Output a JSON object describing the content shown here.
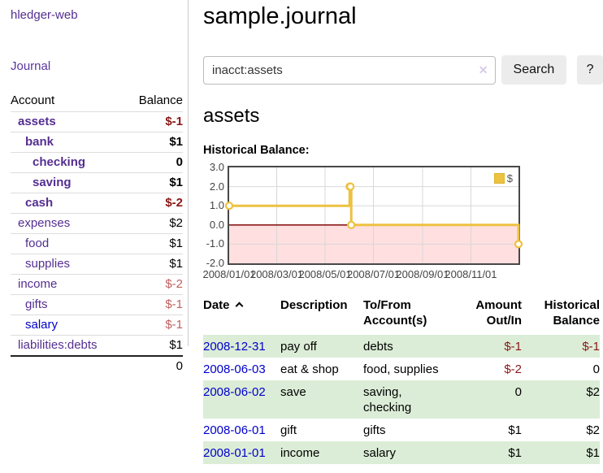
{
  "colors": {
    "link_purple": "#552e91",
    "link_blue": "#0000cc",
    "neg_strong": "#8b1717",
    "neg_muted": "#c06060",
    "series_gold": "#edc240",
    "negative_region_pink": "#ffdfdf",
    "zero_line_red": "#8b1a1a",
    "row_green": "#dcedd7"
  },
  "sidebar": {
    "app_title": "hledger-web",
    "nav": {
      "journal": "Journal"
    },
    "accounts_table": {
      "col_account": "Account",
      "col_balance": "Balance",
      "rows": [
        {
          "name": "assets",
          "balance": "$-1",
          "level": 0,
          "matched": true,
          "name_color": "purple",
          "balance_tone": "neg_strong"
        },
        {
          "name": "bank",
          "balance": "$1",
          "level": 1,
          "matched": true,
          "name_color": "purple",
          "balance_tone": "normal"
        },
        {
          "name": "checking",
          "balance": "0",
          "level": 2,
          "matched": true,
          "name_color": "purple",
          "balance_tone": "normal"
        },
        {
          "name": "saving",
          "balance": "$1",
          "level": 2,
          "matched": true,
          "name_color": "purple",
          "balance_tone": "normal"
        },
        {
          "name": "cash",
          "balance": "$-2",
          "level": 1,
          "matched": true,
          "name_color": "purple",
          "balance_tone": "neg_strong"
        },
        {
          "name": "expenses",
          "balance": "$2",
          "level": 0,
          "matched": false,
          "name_color": "purple",
          "balance_tone": "normal"
        },
        {
          "name": "food",
          "balance": "$1",
          "level": 1,
          "matched": false,
          "name_color": "purple",
          "balance_tone": "normal"
        },
        {
          "name": "supplies",
          "balance": "$1",
          "level": 1,
          "matched": false,
          "name_color": "purple",
          "balance_tone": "normal"
        },
        {
          "name": "income",
          "balance": "$-2",
          "level": 0,
          "matched": false,
          "name_color": "purple",
          "balance_tone": "neg_muted"
        },
        {
          "name": "gifts",
          "balance": "$-1",
          "level": 1,
          "matched": false,
          "name_color": "purple",
          "balance_tone": "neg_muted"
        },
        {
          "name": "salary",
          "balance": "$-1",
          "level": 1,
          "matched": false,
          "name_color": "blue",
          "balance_tone": "neg_muted"
        },
        {
          "name": "liabilities:debts",
          "balance": "$1",
          "level": 0,
          "matched": false,
          "name_color": "purple",
          "balance_tone": "normal"
        }
      ],
      "total": "0"
    }
  },
  "main": {
    "title": "sample.journal",
    "search": {
      "value": "inacct:assets",
      "clear_icon": "✕",
      "search_button": "Search",
      "help_button": "?"
    },
    "account_heading": "assets",
    "chart_title": "Historical Balance:"
  },
  "chart_data": {
    "type": "line",
    "title": "Historical Balance:",
    "steps": true,
    "xlim": [
      "2008-01-01",
      "2008-12-31"
    ],
    "ylim": [
      -2,
      3
    ],
    "y_ticks": [
      3.0,
      2.0,
      1.0,
      0.0,
      -1.0,
      -2.0
    ],
    "x_ticks": [
      "2008/01/01",
      "2008/03/01",
      "2008/05/01",
      "2008/07/01",
      "2008/09/01",
      "2008/11/01"
    ],
    "grid": true,
    "legend": {
      "label": "$",
      "position": "top-right"
    },
    "series": [
      {
        "name": "$",
        "color": "#edc240",
        "points": [
          [
            "2008-01-01",
            1
          ],
          [
            "2008-06-01",
            2
          ],
          [
            "2008-06-02",
            2
          ],
          [
            "2008-06-03",
            0
          ],
          [
            "2008-12-31",
            -1
          ]
        ]
      }
    ],
    "negative_fill": "#ffdfdf",
    "zero_line_color": "#8b1a1a"
  },
  "transactions": {
    "headers": {
      "date": "Date",
      "sort_icon": "chevron-up",
      "description": "Description",
      "tofrom": "To/From\nAccount(s)",
      "amount": "Amount\nOut/In",
      "balance": "Historical\nBalance"
    },
    "rows": [
      {
        "date": "2008-12-31",
        "description": "pay off",
        "accounts": "debts",
        "amount": "$-1",
        "amount_neg": true,
        "balance": "$-1",
        "balance_neg": true
      },
      {
        "date": "2008-06-03",
        "description": "eat & shop",
        "accounts": "food, supplies",
        "amount": "$-2",
        "amount_neg": true,
        "balance": "0",
        "balance_neg": false
      },
      {
        "date": "2008-06-02",
        "description": "save",
        "accounts": "saving, checking",
        "amount": "0",
        "amount_neg": false,
        "balance": "$2",
        "balance_neg": false
      },
      {
        "date": "2008-06-01",
        "description": "gift",
        "accounts": "gifts",
        "amount": "$1",
        "amount_neg": false,
        "balance": "$2",
        "balance_neg": false
      },
      {
        "date": "2008-01-01",
        "description": "income",
        "accounts": "salary",
        "amount": "$1",
        "amount_neg": false,
        "balance": "$1",
        "balance_neg": false
      }
    ]
  }
}
